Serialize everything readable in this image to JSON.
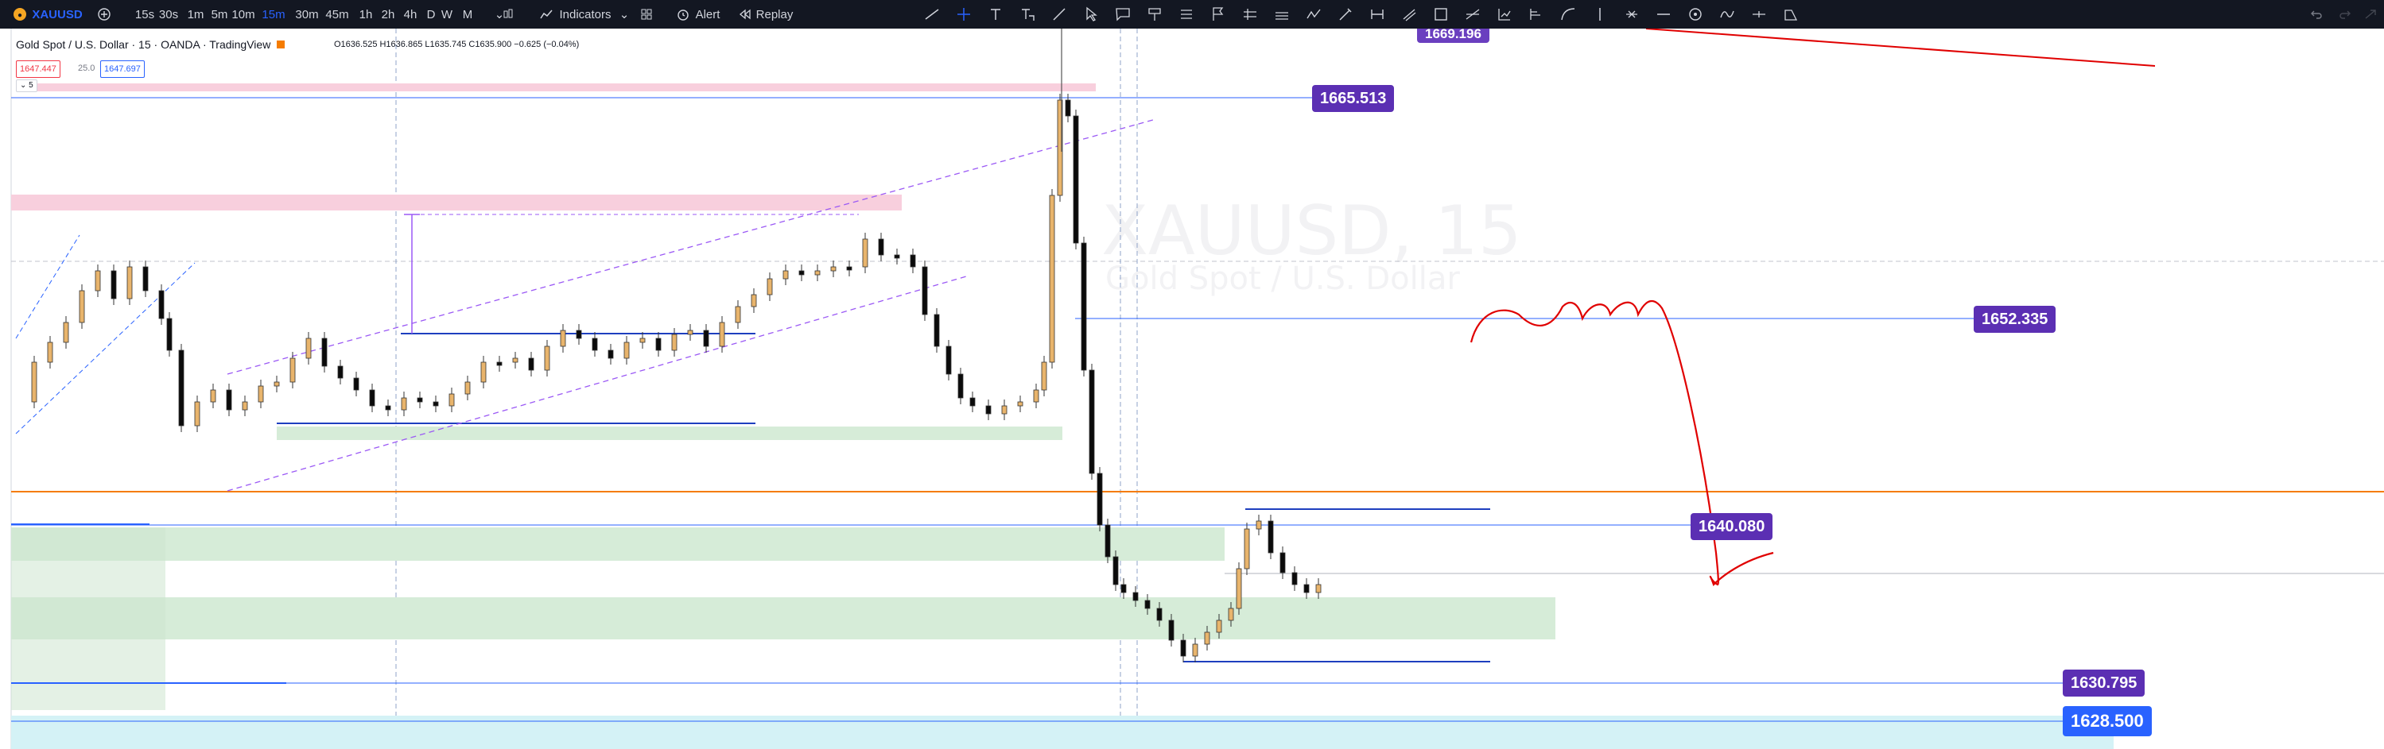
{
  "toolbar": {
    "symbol": "XAUUSD",
    "timeframes": [
      "15s",
      "30s",
      "1m",
      "5m",
      "10m",
      "15m",
      "30m",
      "45m",
      "1h",
      "2h",
      "4h",
      "D",
      "W",
      "M"
    ],
    "active_timeframe": "15m",
    "indicators_label": "Indicators",
    "alert_label": "Alert",
    "replay_label": "Replay"
  },
  "legend": {
    "title": "Gold Spot / U.S. Dollar · 15 · OANDA · TradingView",
    "ohlc": "O1636.525 H1636.865 L1635.745 C1635.900 −0.625 (−0.04%)",
    "bid": "1647.447",
    "spread": "25.0",
    "ask": "1647.697",
    "collapse": "5"
  },
  "watermark": {
    "symbol": "XAUUSD, 15",
    "description": "Gold Spot / U.S. Dollar"
  },
  "price_labels": [
    {
      "value": "1669.196",
      "color": "#6a3fbf"
    },
    {
      "value": "1665.513",
      "color": "#5b2fb3"
    },
    {
      "value": "1652.335",
      "color": "#5b2fb3"
    },
    {
      "value": "1640.080",
      "color": "#5b2fb3"
    },
    {
      "value": "1630.795",
      "color": "#5b2fb3"
    },
    {
      "value": "1628.500",
      "color": "#2962ff"
    }
  ],
  "colors": {
    "up_candle": "#e8b46c",
    "down_candle": "#0b0b0b",
    "demand_zone": "#d6ecd8",
    "supply_zone": "#f8cfdd",
    "trend_line": "#9b59f5",
    "level_line": "#2962ff",
    "orange_line": "#f57c00",
    "drawing_red": "#e00000",
    "accent": "#2962ff"
  }
}
